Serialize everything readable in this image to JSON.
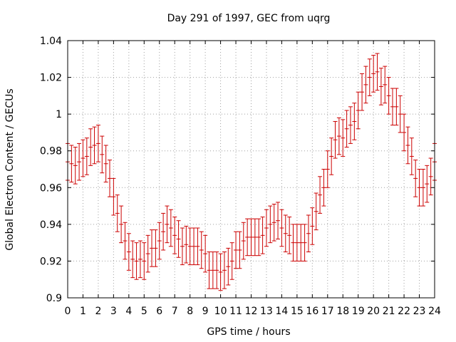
{
  "chart_data": {
    "type": "scatter",
    "title": "Day 291 of 1997, GEC from uqrg",
    "xlabel": "GPS time / hours",
    "ylabel": "Global Electron Content / GECUs",
    "xlim": [
      0,
      24
    ],
    "ylim": [
      0.9,
      1.04
    ],
    "grid": true,
    "xticks": [
      0,
      1,
      2,
      3,
      4,
      5,
      6,
      7,
      8,
      9,
      10,
      11,
      12,
      13,
      14,
      15,
      16,
      17,
      18,
      19,
      20,
      21,
      22,
      23,
      24
    ],
    "yticks": [
      0.9,
      0.92,
      0.94,
      0.96,
      0.98,
      1.0,
      1.02,
      1.04
    ],
    "ytick_labels": [
      "0.9",
      "0.92",
      "0.94",
      "0.96",
      "0.98",
      "1",
      "1.02",
      "1.04"
    ],
    "error": 0.01,
    "series": [
      {
        "name": "GEC",
        "color": "#cc0000",
        "x": [
          0.0,
          0.25,
          0.5,
          0.75,
          1.0,
          1.25,
          1.5,
          1.75,
          2.0,
          2.25,
          2.5,
          2.75,
          3.0,
          3.25,
          3.5,
          3.75,
          4.0,
          4.25,
          4.5,
          4.75,
          5.0,
          5.25,
          5.5,
          5.75,
          6.0,
          6.25,
          6.5,
          6.75,
          7.0,
          7.25,
          7.5,
          7.75,
          8.0,
          8.25,
          8.5,
          8.75,
          9.0,
          9.25,
          9.5,
          9.75,
          10.0,
          10.25,
          10.5,
          10.75,
          11.0,
          11.25,
          11.5,
          11.75,
          12.0,
          12.25,
          12.5,
          12.75,
          13.0,
          13.25,
          13.5,
          13.75,
          14.0,
          14.25,
          14.5,
          14.75,
          15.0,
          15.25,
          15.5,
          15.75,
          16.0,
          16.25,
          16.5,
          16.75,
          17.0,
          17.25,
          17.5,
          17.75,
          18.0,
          18.25,
          18.5,
          18.75,
          19.0,
          19.25,
          19.5,
          19.75,
          20.0,
          20.25,
          20.5,
          20.75,
          21.0,
          21.25,
          21.5,
          21.75,
          22.0,
          22.25,
          22.5,
          22.75,
          23.0,
          23.25,
          23.5,
          23.75,
          24.0
        ],
        "y": [
          0.974,
          0.973,
          0.972,
          0.974,
          0.976,
          0.977,
          0.982,
          0.983,
          0.984,
          0.978,
          0.973,
          0.965,
          0.955,
          0.946,
          0.94,
          0.931,
          0.925,
          0.921,
          0.92,
          0.921,
          0.92,
          0.924,
          0.927,
          0.927,
          0.931,
          0.936,
          0.94,
          0.938,
          0.934,
          0.932,
          0.928,
          0.929,
          0.928,
          0.928,
          0.928,
          0.926,
          0.924,
          0.915,
          0.915,
          0.915,
          0.914,
          0.915,
          0.917,
          0.92,
          0.926,
          0.926,
          0.931,
          0.933,
          0.933,
          0.933,
          0.933,
          0.934,
          0.938,
          0.94,
          0.941,
          0.942,
          0.938,
          0.935,
          0.934,
          0.93,
          0.93,
          0.93,
          0.93,
          0.935,
          0.939,
          0.947,
          0.956,
          0.96,
          0.97,
          0.977,
          0.986,
          0.988,
          0.987,
          0.992,
          0.994,
          0.996,
          1.002,
          1.012,
          1.016,
          1.02,
          1.022,
          1.023,
          1.015,
          1.016,
          1.01,
          1.004,
          1.004,
          1.0,
          0.99,
          0.983,
          0.977,
          0.965,
          0.96,
          0.96,
          0.962,
          0.966,
          0.974
        ]
      }
    ]
  }
}
